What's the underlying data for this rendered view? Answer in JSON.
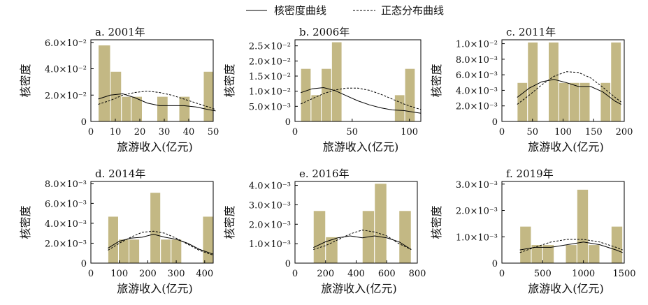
{
  "legend": {
    "kde_label": "核密度曲线",
    "normal_label": "正态分布曲线"
  },
  "colors": {
    "bar_fill": "#c3b884",
    "bar_stroke": "#ffffff",
    "kde_line": "#000000",
    "normal_line": "#000000",
    "axis": "#000000"
  },
  "chart_data": [
    {
      "type": "bar",
      "title": "a. 2001年",
      "xlabel": "旅游收入(亿元)",
      "ylabel": "核密度",
      "xlim": [
        0,
        50
      ],
      "ylim": [
        0,
        0.062
      ],
      "xticks": [
        {
          "v": 0,
          "label": "0"
        },
        {
          "v": 10,
          "label": "10"
        },
        {
          "v": 20,
          "label": "20"
        },
        {
          "v": 30,
          "label": "30"
        },
        {
          "v": 40,
          "label": "40"
        },
        {
          "v": 50,
          "label": "50"
        }
      ],
      "yticks": [
        {
          "v": 0,
          "label": "0"
        },
        {
          "v": 0.02,
          "label": "2.0×10⁻²"
        },
        {
          "v": 0.04,
          "label": "4.0×10⁻²"
        },
        {
          "v": 0.06,
          "label": "6.0×10⁻²"
        }
      ],
      "bins": [
        {
          "x0": 3,
          "x1": 8,
          "value": 0.058
        },
        {
          "x0": 8,
          "x1": 12.5,
          "value": 0.038
        },
        {
          "x0": 12.5,
          "x1": 16.5,
          "value": 0.019
        },
        {
          "x0": 16.5,
          "x1": 21,
          "value": 0.019
        },
        {
          "x0": 27,
          "x1": 31.5,
          "value": 0.019
        },
        {
          "x0": 36,
          "x1": 40.5,
          "value": 0.019
        },
        {
          "x0": 46,
          "x1": 50,
          "value": 0.038
        }
      ],
      "kde": [
        [
          3,
          0.017
        ],
        [
          8,
          0.02
        ],
        [
          13,
          0.021
        ],
        [
          18,
          0.018
        ],
        [
          23,
          0.014
        ],
        [
          28,
          0.012
        ],
        [
          33,
          0.012
        ],
        [
          38,
          0.012
        ],
        [
          43,
          0.011
        ],
        [
          48,
          0.009
        ],
        [
          51,
          0.008
        ]
      ],
      "normal": [
        [
          3,
          0.013
        ],
        [
          8,
          0.016
        ],
        [
          13,
          0.02
        ],
        [
          18,
          0.022
        ],
        [
          23,
          0.023
        ],
        [
          28,
          0.022
        ],
        [
          33,
          0.02
        ],
        [
          38,
          0.017
        ],
        [
          43,
          0.014
        ],
        [
          48,
          0.011
        ],
        [
          51,
          0.009
        ]
      ]
    },
    {
      "type": "bar",
      "title": "b. 2006年",
      "xlabel": "旅游收入(亿元)",
      "ylabel": "核密度",
      "xlim": [
        0,
        110
      ],
      "ylim": [
        0,
        0.027
      ],
      "xticks": [
        {
          "v": 0,
          "label": "0"
        },
        {
          "v": 50,
          "label": "50"
        },
        {
          "v": 100,
          "label": "100"
        }
      ],
      "yticks": [
        {
          "v": 0,
          "label": "0"
        },
        {
          "v": 0.005,
          "label": "5.0×10⁻³"
        },
        {
          "v": 0.01,
          "label": "1.0×10⁻²"
        },
        {
          "v": 0.015,
          "label": "1.5×10⁻²"
        },
        {
          "v": 0.02,
          "label": "2.0×10⁻²"
        },
        {
          "v": 0.025,
          "label": "2.5×10⁻²"
        }
      ],
      "bins": [
        {
          "x0": 5,
          "x1": 14,
          "value": 0.0175
        },
        {
          "x0": 14,
          "x1": 23,
          "value": 0.0088
        },
        {
          "x0": 23,
          "x1": 32,
          "value": 0.0175
        },
        {
          "x0": 32,
          "x1": 41,
          "value": 0.0263
        },
        {
          "x0": 87,
          "x1": 96,
          "value": 0.0088
        },
        {
          "x0": 96,
          "x1": 105,
          "value": 0.0175
        }
      ],
      "kde": [
        [
          5,
          0.0095
        ],
        [
          15,
          0.0108
        ],
        [
          25,
          0.0112
        ],
        [
          35,
          0.0102
        ],
        [
          45,
          0.0085
        ],
        [
          55,
          0.0068
        ],
        [
          65,
          0.0055
        ],
        [
          75,
          0.0045
        ],
        [
          85,
          0.0038
        ],
        [
          95,
          0.0036
        ],
        [
          105,
          0.003
        ],
        [
          110,
          0.0027
        ]
      ],
      "normal": [
        [
          5,
          0.0058
        ],
        [
          15,
          0.0075
        ],
        [
          25,
          0.0092
        ],
        [
          35,
          0.0104
        ],
        [
          45,
          0.011
        ],
        [
          55,
          0.011
        ],
        [
          65,
          0.0103
        ],
        [
          75,
          0.009
        ],
        [
          85,
          0.0074
        ],
        [
          95,
          0.0058
        ],
        [
          105,
          0.0045
        ],
        [
          110,
          0.004
        ]
      ]
    },
    {
      "type": "bar",
      "title": "c. 2011年",
      "xlabel": "旅游收入(亿元)",
      "ylabel": "核密度",
      "xlim": [
        0,
        200
      ],
      "ylim": [
        0,
        0.0105
      ],
      "xticks": [
        {
          "v": 0,
          "label": "0"
        },
        {
          "v": 50,
          "label": "50"
        },
        {
          "v": 100,
          "label": "100"
        },
        {
          "v": 150,
          "label": "150"
        },
        {
          "v": 200,
          "label": "200"
        }
      ],
      "yticks": [
        {
          "v": 0,
          "label": "0"
        },
        {
          "v": 0.002,
          "label": "2.0×10⁻³"
        },
        {
          "v": 0.004,
          "label": "4.0×10⁻³"
        },
        {
          "v": 0.006,
          "label": "6.0×10⁻³"
        },
        {
          "v": 0.008,
          "label": "8.0×10⁻³"
        },
        {
          "v": 0.01,
          "label": "1.0×10⁻²"
        }
      ],
      "bins": [
        {
          "x0": 25,
          "x1": 42,
          "value": 0.005
        },
        {
          "x0": 42,
          "x1": 59,
          "value": 0.0102
        },
        {
          "x0": 76,
          "x1": 93,
          "value": 0.0102
        },
        {
          "x0": 93,
          "x1": 110,
          "value": 0.005
        },
        {
          "x0": 110,
          "x1": 127,
          "value": 0.005
        },
        {
          "x0": 127,
          "x1": 144,
          "value": 0.005
        },
        {
          "x0": 161,
          "x1": 178,
          "value": 0.005
        },
        {
          "x0": 178,
          "x1": 195,
          "value": 0.0102
        }
      ],
      "kde": [
        [
          25,
          0.0031
        ],
        [
          45,
          0.0043
        ],
        [
          65,
          0.0051
        ],
        [
          85,
          0.0054
        ],
        [
          105,
          0.005
        ],
        [
          125,
          0.0045
        ],
        [
          145,
          0.0045
        ],
        [
          165,
          0.0038
        ],
        [
          185,
          0.0026
        ],
        [
          195,
          0.0022
        ]
      ],
      "normal": [
        [
          25,
          0.0022
        ],
        [
          45,
          0.0034
        ],
        [
          65,
          0.0047
        ],
        [
          85,
          0.0058
        ],
        [
          105,
          0.0064
        ],
        [
          125,
          0.0063
        ],
        [
          145,
          0.0056
        ],
        [
          165,
          0.0044
        ],
        [
          185,
          0.0031
        ],
        [
          195,
          0.0025
        ]
      ]
    },
    {
      "type": "bar",
      "title": "d. 2014年",
      "xlabel": "旅游收入(亿元)",
      "ylabel": "核密度",
      "xlim": [
        0,
        430
      ],
      "ylim": [
        0,
        0.0082
      ],
      "xticks": [
        {
          "v": 0,
          "label": "0"
        },
        {
          "v": 100,
          "label": "100"
        },
        {
          "v": 200,
          "label": "200"
        },
        {
          "v": 300,
          "label": "300"
        },
        {
          "v": 400,
          "label": "400"
        }
      ],
      "yticks": [
        {
          "v": 0,
          "label": "0"
        },
        {
          "v": 0.002,
          "label": "2.0×10⁻³"
        },
        {
          "v": 0.004,
          "label": "4.0×10⁻³"
        },
        {
          "v": 0.006,
          "label": "6.0×10⁻³"
        },
        {
          "v": 0.008,
          "label": "8.0×10⁻³"
        }
      ],
      "bins": [
        {
          "x0": 60,
          "x1": 97,
          "value": 0.0047
        },
        {
          "x0": 97,
          "x1": 134,
          "value": 0.0024
        },
        {
          "x0": 134,
          "x1": 171,
          "value": 0.0024
        },
        {
          "x0": 208,
          "x1": 245,
          "value": 0.0071
        },
        {
          "x0": 245,
          "x1": 282,
          "value": 0.0024
        },
        {
          "x0": 282,
          "x1": 319,
          "value": 0.0024
        },
        {
          "x0": 393,
          "x1": 430,
          "value": 0.0047
        }
      ],
      "kde": [
        [
          60,
          0.0015
        ],
        [
          100,
          0.0022
        ],
        [
          140,
          0.0025
        ],
        [
          180,
          0.0026
        ],
        [
          220,
          0.0029
        ],
        [
          260,
          0.0026
        ],
        [
          300,
          0.0024
        ],
        [
          340,
          0.002
        ],
        [
          380,
          0.0014
        ],
        [
          430,
          0.0009
        ]
      ],
      "normal": [
        [
          60,
          0.0013
        ],
        [
          100,
          0.002
        ],
        [
          140,
          0.0026
        ],
        [
          180,
          0.0031
        ],
        [
          220,
          0.0032
        ],
        [
          260,
          0.003
        ],
        [
          300,
          0.0025
        ],
        [
          340,
          0.0019
        ],
        [
          380,
          0.0013
        ],
        [
          430,
          0.0008
        ]
      ]
    },
    {
      "type": "bar",
      "title": "e. 2016年",
      "xlabel": "旅游收入(亿元)",
      "ylabel": "核密度",
      "xlim": [
        0,
        800
      ],
      "ylim": [
        0,
        0.0042
      ],
      "xticks": [
        {
          "v": 0,
          "label": "0"
        },
        {
          "v": 200,
          "label": "200"
        },
        {
          "v": 400,
          "label": "400"
        },
        {
          "v": 600,
          "label": "600"
        },
        {
          "v": 800,
          "label": "800"
        }
      ],
      "yticks": [
        {
          "v": 0,
          "label": "0"
        },
        {
          "v": 0.001,
          "label": "1.0×10⁻³"
        },
        {
          "v": 0.002,
          "label": "2.0×10⁻³"
        },
        {
          "v": 0.003,
          "label": "3.0×10⁻³"
        },
        {
          "v": 0.004,
          "label": "4.0×10⁻³"
        }
      ],
      "bins": [
        {
          "x0": 120,
          "x1": 200,
          "value": 0.0027
        },
        {
          "x0": 200,
          "x1": 280,
          "value": 0.00135
        },
        {
          "x0": 440,
          "x1": 520,
          "value": 0.0027
        },
        {
          "x0": 520,
          "x1": 600,
          "value": 0.0041
        },
        {
          "x0": 680,
          "x1": 760,
          "value": 0.0027
        }
      ],
      "kde": [
        [
          120,
          0.0008
        ],
        [
          200,
          0.0011
        ],
        [
          280,
          0.0013
        ],
        [
          360,
          0.0014
        ],
        [
          440,
          0.0013
        ],
        [
          520,
          0.0014
        ],
        [
          600,
          0.0013
        ],
        [
          680,
          0.0011
        ],
        [
          760,
          0.0007
        ]
      ],
      "normal": [
        [
          120,
          0.0007
        ],
        [
          200,
          0.0009
        ],
        [
          280,
          0.0012
        ],
        [
          360,
          0.0015
        ],
        [
          440,
          0.0017
        ],
        [
          520,
          0.0016
        ],
        [
          600,
          0.0014
        ],
        [
          680,
          0.001
        ],
        [
          760,
          0.0007
        ]
      ]
    },
    {
      "type": "bar",
      "title": "f. 2019年",
      "xlabel": "旅游收入(亿元)",
      "ylabel": "核密度",
      "xlim": [
        0,
        1500
      ],
      "ylim": [
        0,
        0.0031
      ],
      "xticks": [
        {
          "v": 0,
          "label": "0"
        },
        {
          "v": 500,
          "label": "500"
        },
        {
          "v": 1000,
          "label": "1000"
        },
        {
          "v": 1500,
          "label": "1500"
        }
      ],
      "yticks": [
        {
          "v": 0,
          "label": "0"
        },
        {
          "v": 0.001,
          "label": "1.0×10⁻³"
        },
        {
          "v": 0.002,
          "label": "2.0×10⁻³"
        },
        {
          "v": 0.003,
          "label": "3.0×10⁻³"
        }
      ],
      "bins": [
        {
          "x0": 220,
          "x1": 360,
          "value": 0.0014
        },
        {
          "x0": 360,
          "x1": 500,
          "value": 0.0007
        },
        {
          "x0": 500,
          "x1": 640,
          "value": 0.0007
        },
        {
          "x0": 780,
          "x1": 920,
          "value": 0.0007
        },
        {
          "x0": 920,
          "x1": 1060,
          "value": 0.0028
        },
        {
          "x0": 1060,
          "x1": 1200,
          "value": 0.0007
        },
        {
          "x0": 1340,
          "x1": 1480,
          "value": 0.0014
        }
      ],
      "kde": [
        [
          220,
          0.0005
        ],
        [
          400,
          0.0006
        ],
        [
          600,
          0.0006
        ],
        [
          800,
          0.0007
        ],
        [
          1000,
          0.0008
        ],
        [
          1200,
          0.0007
        ],
        [
          1400,
          0.0005
        ],
        [
          1480,
          0.0004
        ]
      ],
      "normal": [
        [
          220,
          0.0004
        ],
        [
          400,
          0.0006
        ],
        [
          600,
          0.0008
        ],
        [
          800,
          0.0009
        ],
        [
          1000,
          0.0009
        ],
        [
          1200,
          0.0008
        ],
        [
          1400,
          0.0006
        ],
        [
          1480,
          0.0005
        ]
      ]
    }
  ]
}
